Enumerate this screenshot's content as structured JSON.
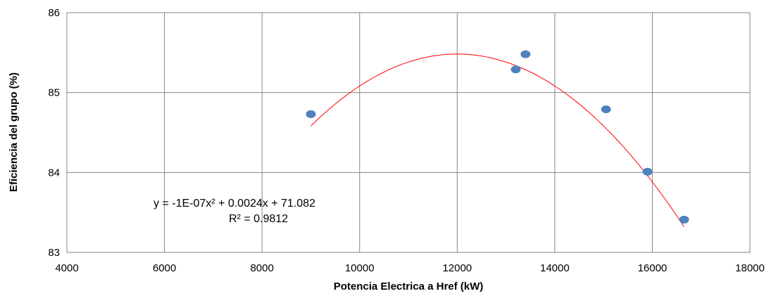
{
  "chart_data": {
    "type": "scatter",
    "title": "",
    "xlabel": "Potencia Electrica a Href (kW)",
    "ylabel": "Eficiencia del grupo (%)",
    "xlim": [
      4000,
      18000
    ],
    "ylim": [
      83,
      86
    ],
    "x_ticks": [
      "4000",
      "6000",
      "8000",
      "10000",
      "12000",
      "14000",
      "16000",
      "18000"
    ],
    "y_ticks": [
      "83",
      "84",
      "85",
      "86"
    ],
    "grid": true,
    "series": [
      {
        "points": [
          {
            "x": 9000,
            "y": 84.73
          },
          {
            "x": 13200,
            "y": 85.29
          },
          {
            "x": 13400,
            "y": 85.48
          },
          {
            "x": 15050,
            "y": 84.79
          },
          {
            "x": 15900,
            "y": 84.01
          },
          {
            "x": 16650,
            "y": 83.41
          }
        ],
        "color": "#4f81bd"
      }
    ],
    "trendline": {
      "type": "polynomial",
      "order": 2,
      "coefficients": {
        "a": -1e-07,
        "b": 0.0024,
        "c": 71.082
      },
      "x_range": [
        9000,
        16650
      ],
      "color": "#ff0000",
      "equation_label": "y = -1E-07x² + 0.0024x + 71.082",
      "r2_label": "R² = 0.9812"
    },
    "colors": {
      "grid": "#868686",
      "axis": "#868686",
      "marker": "#4f81bd",
      "trend": "#ff0000"
    }
  }
}
